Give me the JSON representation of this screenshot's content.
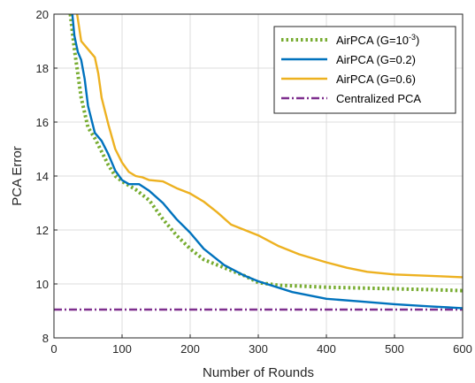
{
  "chart_data": {
    "type": "line",
    "title": "",
    "xlabel": "Number of Rounds",
    "ylabel": "PCA Error",
    "xlim": [
      0,
      600
    ],
    "ylim": [
      8,
      20
    ],
    "xticks": [
      "0",
      "100",
      "200",
      "300",
      "400",
      "500",
      "600"
    ],
    "yticks": [
      "8",
      "10",
      "12",
      "14",
      "16",
      "18",
      "20"
    ],
    "grid": true,
    "legend_position": "top-right",
    "series": [
      {
        "name": "AirPCA (G=10",
        "name_superscript": "-3",
        "name_suffix": ")",
        "color": "#77AC30",
        "style": "dotted",
        "x": [
          24,
          30,
          40,
          50,
          60,
          70,
          80,
          90,
          100,
          120,
          140,
          160,
          180,
          200,
          220,
          250,
          280,
          300,
          330,
          360,
          400,
          450,
          500,
          550,
          600
        ],
        "y": [
          20,
          18.7,
          16.9,
          15.8,
          15.4,
          14.9,
          14.4,
          14.0,
          13.8,
          13.5,
          13.1,
          12.4,
          11.8,
          11.3,
          10.9,
          10.6,
          10.3,
          10.05,
          9.95,
          9.92,
          9.88,
          9.85,
          9.82,
          9.79,
          9.75
        ]
      },
      {
        "name": "AirPCA (G=0.2)",
        "color": "#0072BD",
        "style": "solid",
        "x": [
          27,
          30,
          35,
          40,
          45,
          50,
          60,
          70,
          80,
          90,
          100,
          110,
          125,
          140,
          160,
          180,
          200,
          220,
          250,
          280,
          300,
          350,
          400,
          450,
          500,
          550,
          600
        ],
        "y": [
          20,
          19.2,
          18.6,
          18.3,
          17.6,
          16.6,
          15.6,
          15.3,
          14.8,
          14.2,
          13.85,
          13.7,
          13.7,
          13.45,
          13.0,
          12.4,
          11.9,
          11.3,
          10.7,
          10.3,
          10.1,
          9.7,
          9.45,
          9.35,
          9.25,
          9.17,
          9.1
        ]
      },
      {
        "name": "AirPCA (G=0.6)",
        "color": "#EDB120",
        "style": "solid",
        "x": [
          34,
          40,
          50,
          60,
          65,
          70,
          80,
          90,
          100,
          110,
          120,
          130,
          140,
          160,
          180,
          200,
          220,
          240,
          260,
          280,
          300,
          330,
          360,
          400,
          430,
          460,
          500,
          550,
          600
        ],
        "y": [
          20,
          19.0,
          18.7,
          18.4,
          17.8,
          16.9,
          15.9,
          15.0,
          14.5,
          14.15,
          14.0,
          13.95,
          13.85,
          13.8,
          13.55,
          13.35,
          13.05,
          12.65,
          12.2,
          12.0,
          11.8,
          11.4,
          11.1,
          10.8,
          10.6,
          10.45,
          10.35,
          10.3,
          10.25
        ]
      },
      {
        "name": "Centralized PCA",
        "color": "#7E2F8E",
        "style": "dashdot",
        "x": [
          0,
          600
        ],
        "y": [
          9.05,
          9.05
        ]
      }
    ]
  }
}
